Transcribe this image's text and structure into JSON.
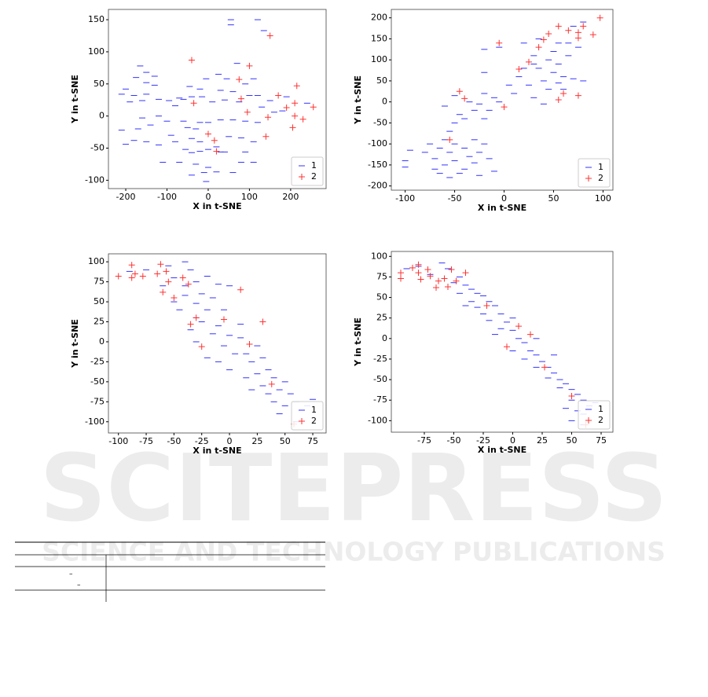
{
  "chart_data": [
    {
      "type": "scatter",
      "xlabel": "X in t-SNE",
      "ylabel": "Y in t-SNE",
      "xlim": [
        -242,
        286
      ],
      "ylim": [
        -113,
        166
      ],
      "xticks": [
        -200,
        -100,
        0,
        100,
        200
      ],
      "yticks": [
        -100,
        -50,
        0,
        50,
        100,
        150
      ],
      "legend": "lower right",
      "series": [
        {
          "name": "1",
          "color": "#3333ff",
          "marker": "_",
          "x": [
            55,
            55,
            120,
            135,
            -165,
            -150,
            -130,
            -175,
            -150,
            -130,
            -200,
            -210,
            -180,
            -150,
            -160,
            -190,
            -120,
            -95,
            -60,
            -45,
            -20,
            -5,
            25,
            45,
            70,
            90,
            110,
            100,
            60,
            30,
            -40,
            -70,
            -15,
            10,
            40,
            75,
            120,
            130,
            150,
            190,
            160,
            180,
            240,
            -80,
            -120,
            -160,
            -210,
            -170,
            -140,
            -100,
            -60,
            -20,
            0,
            30,
            60,
            90,
            120,
            -90,
            -50,
            -30,
            -120,
            -150,
            -180,
            -200,
            -80,
            -40,
            -20,
            0,
            20,
            50,
            80,
            110,
            -55,
            -40,
            -20,
            40,
            90,
            30,
            -110,
            -70,
            -30,
            0,
            20,
            -40,
            -10,
            60,
            80,
            110,
            -5
          ],
          "y": [
            150,
            142,
            150,
            133,
            78,
            68,
            62,
            60,
            52,
            48,
            42,
            34,
            32,
            34,
            24,
            22,
            26,
            24,
            26,
            46,
            42,
            58,
            65,
            58,
            82,
            50,
            58,
            32,
            38,
            40,
            30,
            28,
            30,
            22,
            25,
            22,
            32,
            14,
            24,
            30,
            6,
            8,
            20,
            16,
            0,
            -3,
            -22,
            -20,
            -14,
            -8,
            -8,
            -10,
            -10,
            -6,
            -6,
            -8,
            -10,
            -30,
            -18,
            -20,
            -45,
            -40,
            -38,
            -44,
            -40,
            -35,
            -40,
            -52,
            -48,
            -32,
            -34,
            -40,
            -52,
            -57,
            -55,
            -56,
            -56,
            -56,
            -72,
            -72,
            -75,
            -80,
            -87,
            -92,
            -88,
            -88,
            -72,
            -72,
            -102
          ]
        },
        {
          "name": "2",
          "color": "#ff3333",
          "marker": "+",
          "x": [
            -40,
            150,
            100,
            75,
            -35,
            215,
            80,
            170,
            190,
            210,
            255,
            95,
            145,
            140,
            210,
            230,
            205,
            0,
            15,
            20
          ],
          "y": [
            87,
            125,
            78,
            57,
            20,
            47,
            27,
            32,
            13,
            20,
            14,
            6,
            -2,
            -32,
            0,
            -5,
            -18,
            -28,
            -38,
            -55
          ]
        }
      ]
    },
    {
      "type": "scatter",
      "xlabel": "X in t-SNE",
      "ylabel": "Y in t-SNE",
      "xlim": [
        -114,
        110
      ],
      "ylim": [
        -210,
        220
      ],
      "xticks": [
        -100,
        -50,
        0,
        50,
        100
      ],
      "yticks": [
        -200,
        -150,
        -100,
        -50,
        0,
        50,
        100,
        150,
        200
      ],
      "legend": "lower right",
      "series": [
        {
          "name": "1",
          "color": "#3333ff",
          "marker": "_",
          "x": [
            -100,
            -95,
            -100,
            -80,
            -75,
            -70,
            -65,
            -60,
            -70,
            -60,
            -55,
            -50,
            -50,
            -45,
            -40,
            -35,
            -40,
            -30,
            -30,
            -25,
            -25,
            -20,
            -15,
            -10,
            -55,
            -65,
            -55,
            -50,
            -40,
            -30,
            -25,
            -20,
            -35,
            -50,
            -45,
            -60,
            -20,
            -10,
            -15,
            -20,
            -20,
            -5,
            -5,
            5,
            10,
            15,
            20,
            20,
            30,
            35,
            25,
            40,
            45,
            50,
            55,
            55,
            60,
            65,
            70,
            75,
            80,
            65,
            50,
            45,
            30,
            40,
            55,
            60,
            70,
            80,
            30,
            35
          ],
          "y": [
            -155,
            -115,
            -140,
            -120,
            -100,
            -135,
            -110,
            -90,
            -160,
            -150,
            -120,
            -100,
            -140,
            -170,
            -160,
            -130,
            -110,
            -90,
            -145,
            -120,
            -175,
            -100,
            -135,
            -165,
            -180,
            -170,
            -70,
            -50,
            -40,
            -20,
            -5,
            -40,
            0,
            15,
            -30,
            -10,
            20,
            10,
            -20,
            70,
            125,
            130,
            0,
            40,
            20,
            60,
            80,
            140,
            110,
            80,
            40,
            50,
            100,
            120,
            140,
            90,
            60,
            140,
            180,
            130,
            190,
            110,
            70,
            30,
            10,
            -5,
            45,
            30,
            55,
            50,
            90,
            150
          ]
        },
        {
          "name": "2",
          "color": "#ff3333",
          "marker": "+",
          "x": [
            -5,
            -45,
            -40,
            -55,
            0,
            15,
            25,
            35,
            40,
            45,
            55,
            65,
            80,
            90,
            75,
            75,
            97,
            60,
            55,
            75
          ],
          "y": [
            140,
            25,
            8,
            -90,
            -12,
            78,
            95,
            130,
            148,
            162,
            180,
            170,
            180,
            160,
            165,
            152,
            200,
            20,
            5,
            15
          ]
        }
      ]
    },
    {
      "type": "scatter",
      "xlabel": "X in t-SNE",
      "ylabel": "Y in t-SNE",
      "xlim": [
        -109,
        87
      ],
      "ylim": [
        -114,
        110
      ],
      "xticks": [
        -100,
        -75,
        -50,
        -25,
        0,
        25,
        50,
        75
      ],
      "yticks": [
        -100,
        -75,
        -50,
        -25,
        0,
        25,
        50,
        75,
        100
      ],
      "legend": "lower right",
      "series": [
        {
          "name": "1",
          "color": "#3333ff",
          "marker": "_",
          "x": [
            -90,
            -75,
            -55,
            -40,
            -35,
            -50,
            -40,
            -30,
            -20,
            -10,
            0,
            -25,
            -15,
            -30,
            -45,
            -40,
            -20,
            -5,
            -25,
            -10,
            -35,
            -30,
            -15,
            0,
            10,
            -5,
            5,
            -20,
            -10,
            0,
            15,
            25,
            20,
            30,
            35,
            25,
            15,
            40,
            50,
            45,
            30,
            20,
            55,
            60,
            50,
            40,
            70,
            75,
            35,
            45,
            60,
            -30,
            10,
            -50,
            -60
          ],
          "y": [
            88,
            90,
            95,
            100,
            90,
            80,
            70,
            75,
            82,
            72,
            70,
            60,
            55,
            48,
            40,
            58,
            40,
            40,
            25,
            20,
            15,
            0,
            10,
            8,
            5,
            -5,
            -15,
            -20,
            -25,
            -35,
            -15,
            -5,
            -25,
            -20,
            -35,
            -40,
            -45,
            -45,
            -50,
            -60,
            -55,
            -60,
            -65,
            -75,
            -80,
            -75,
            -80,
            -72,
            -65,
            -90,
            -100,
            30,
            22,
            50,
            70
          ]
        },
        {
          "name": "2",
          "color": "#ff3333",
          "marker": "+",
          "x": [
            -100,
            -88,
            -88,
            -85,
            -78,
            -65,
            -62,
            -57,
            -55,
            -60,
            -50,
            -42,
            -37,
            -35,
            -30,
            -25,
            -5,
            10,
            30,
            18,
            38,
            58
          ],
          "y": [
            82,
            80,
            96,
            85,
            82,
            85,
            97,
            88,
            75,
            62,
            55,
            80,
            72,
            22,
            30,
            -6,
            28,
            65,
            25,
            -3,
            -53,
            -103
          ]
        }
      ]
    },
    {
      "type": "scatter",
      "xlabel": "X in t-SNE",
      "ylabel": "Y in t-SNE",
      "xlim": [
        -103,
        85
      ],
      "ylim": [
        -114,
        106
      ],
      "xticks": [
        -75,
        -50,
        -25,
        0,
        25,
        50,
        75
      ],
      "yticks": [
        -100,
        -75,
        -50,
        -25,
        0,
        25,
        50,
        75,
        100
      ],
      "legend": "lower right",
      "series": [
        {
          "name": "1",
          "color": "#3333ff",
          "marker": "_",
          "x": [
            -90,
            -80,
            -60,
            -55,
            -70,
            -45,
            -50,
            -40,
            -35,
            -30,
            -45,
            -25,
            -35,
            -20,
            -30,
            -15,
            -25,
            -10,
            -20,
            -5,
            -10,
            0,
            -15,
            5,
            10,
            0,
            15,
            20,
            10,
            25,
            30,
            20,
            35,
            40,
            30,
            45,
            50,
            40,
            55,
            60,
            50,
            45,
            55,
            65,
            70,
            60,
            50,
            60,
            -40,
            0,
            20,
            35
          ],
          "y": [
            85,
            88,
            92,
            85,
            78,
            75,
            68,
            65,
            60,
            55,
            55,
            52,
            45,
            45,
            38,
            40,
            30,
            30,
            22,
            20,
            12,
            10,
            5,
            0,
            -5,
            -15,
            -15,
            -20,
            -25,
            -28,
            -35,
            -35,
            -42,
            -50,
            -48,
            -55,
            -62,
            -60,
            -68,
            -75,
            -75,
            -85,
            -88,
            -82,
            -78,
            -92,
            -100,
            -105,
            40,
            25,
            0,
            -20
          ]
        },
        {
          "name": "2",
          "color": "#ff3333",
          "marker": "+",
          "x": [
            -95,
            -95,
            -85,
            -80,
            -80,
            -78,
            -72,
            -70,
            -65,
            -63,
            -58,
            -55,
            -52,
            -48,
            -40,
            -22,
            -5,
            5,
            15,
            27,
            50,
            62
          ],
          "y": [
            73,
            80,
            86,
            90,
            80,
            72,
            84,
            76,
            62,
            70,
            73,
            63,
            84,
            70,
            80,
            40,
            -10,
            15,
            5,
            -35,
            -70,
            -105
          ]
        }
      ]
    }
  ],
  "watermark": {
    "title": "SCITEPRESS",
    "subtitle": "SCIENCE AND TECHNOLOGY PUBLICATIONS"
  },
  "table": {
    "rows": [
      [
        "–"
      ],
      [
        "–"
      ]
    ]
  }
}
